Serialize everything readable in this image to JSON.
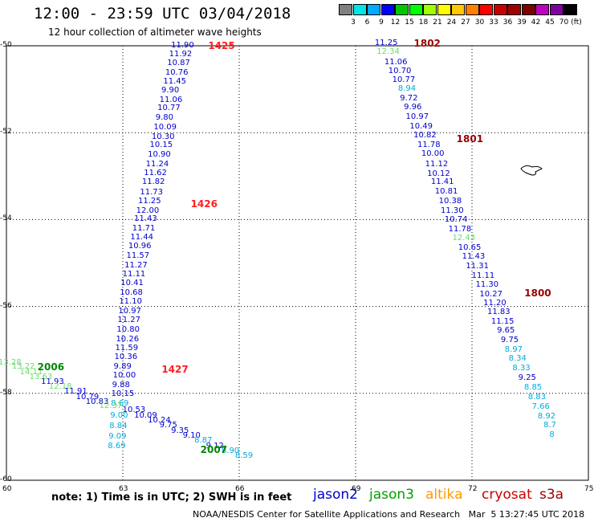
{
  "title": "12:00 - 23:59 UTC 03/04/2018",
  "subtitle": "12 hour collection of altimeter wave heights",
  "colorbar": {
    "unit": "(ft)",
    "colors": [
      "#808080",
      "#00e5e5",
      "#00aaff",
      "#0000ff",
      "#00c800",
      "#00ff00",
      "#a0ff00",
      "#ffff00",
      "#ffc800",
      "#ff8000",
      "#ff0000",
      "#c80000",
      "#a00000",
      "#800000",
      "#c000c0",
      "#8000a0",
      "#000000"
    ],
    "labels": [
      "3",
      "6",
      "9",
      "12",
      "15",
      "18",
      "21",
      "24",
      "27",
      "30",
      "33",
      "36",
      "39",
      "42",
      "45",
      "70"
    ]
  },
  "axes": {
    "x_ticks": [
      "60",
      "63",
      "66",
      "69",
      "72",
      "75"
    ],
    "y_ticks": [
      "-50",
      "-52",
      "-54",
      "-56",
      "-58",
      "-60"
    ]
  },
  "colors": {
    "jason2": "#0000cc",
    "jason3": "#00a000",
    "altika": "#ff9900",
    "cryosat": "#cc0000",
    "s3a": "#990000",
    "light_green": "#70e070",
    "cyan": "#00aadd",
    "lightgreen_j3": "#66dd66"
  },
  "pass_labels": [
    {
      "text": "1425",
      "lon": 65.2,
      "lat": -50.0,
      "color": "#ff2020"
    },
    {
      "text": "1426",
      "lon": 64.75,
      "lat": -53.65,
      "color": "#ff2020"
    },
    {
      "text": "1427",
      "lon": 64.0,
      "lat": -57.45,
      "color": "#ff2020"
    },
    {
      "text": "1802",
      "lon": 70.5,
      "lat": -49.95,
      "color": "#990000"
    },
    {
      "text": "1801",
      "lon": 71.6,
      "lat": -52.15,
      "color": "#990000"
    },
    {
      "text": "1800",
      "lon": 73.35,
      "lat": -55.7,
      "color": "#990000"
    },
    {
      "text": "2006",
      "lon": 60.8,
      "lat": -57.4,
      "color": "#008800"
    },
    {
      "text": "2007",
      "lon": 65.0,
      "lat": -59.3,
      "color": "#008800"
    }
  ],
  "track_1425": {
    "color": "#0000cc",
    "points": [
      {
        "v": "11.90",
        "lon": 64.45,
        "lat": -50.0
      },
      {
        "v": "11.92",
        "lon": 64.4,
        "lat": -50.2
      },
      {
        "v": "10.87",
        "lon": 64.35,
        "lat": -50.4
      },
      {
        "v": "10.76",
        "lon": 64.3,
        "lat": -50.62
      },
      {
        "v": "11.45",
        "lon": 64.25,
        "lat": -50.83
      },
      {
        "v": "9.90",
        "lon": 64.2,
        "lat": -51.04
      },
      {
        "v": "11.06",
        "lon": 64.15,
        "lat": -51.25
      },
      {
        "v": "10.77",
        "lon": 64.1,
        "lat": -51.45
      },
      {
        "v": "9.80",
        "lon": 64.05,
        "lat": -51.67
      },
      {
        "v": "10.09",
        "lon": 64.0,
        "lat": -51.88
      },
      {
        "v": "10.30",
        "lon": 63.95,
        "lat": -52.1
      },
      {
        "v": "10.15",
        "lon": 63.9,
        "lat": -52.3
      },
      {
        "v": "10.90",
        "lon": 63.85,
        "lat": -52.51
      },
      {
        "v": "11.24",
        "lon": 63.8,
        "lat": -52.73
      },
      {
        "v": "11.62",
        "lon": 63.75,
        "lat": -52.94
      },
      {
        "v": "11.82",
        "lon": 63.7,
        "lat": -53.15
      },
      {
        "v": "11.73",
        "lon": 63.65,
        "lat": -53.38
      },
      {
        "v": "11.25",
        "lon": 63.6,
        "lat": -53.58
      },
      {
        "v": "12.00",
        "lon": 63.55,
        "lat": -53.8
      },
      {
        "v": "11.43",
        "lon": 63.5,
        "lat": -54.0
      },
      {
        "v": "11.71",
        "lon": 63.45,
        "lat": -54.21
      },
      {
        "v": "11.44",
        "lon": 63.4,
        "lat": -54.42
      },
      {
        "v": "10.96",
        "lon": 63.35,
        "lat": -54.63
      },
      {
        "v": "11.57",
        "lon": 63.3,
        "lat": -54.85
      },
      {
        "v": "11.27",
        "lon": 63.25,
        "lat": -55.06
      },
      {
        "v": "11.11",
        "lon": 63.2,
        "lat": -55.27
      },
      {
        "v": "10.41",
        "lon": 63.15,
        "lat": -55.48
      },
      {
        "v": "10.68",
        "lon": 63.13,
        "lat": -55.7
      },
      {
        "v": "11.10",
        "lon": 63.11,
        "lat": -55.9
      },
      {
        "v": "10.97",
        "lon": 63.09,
        "lat": -56.12
      },
      {
        "v": "11.27",
        "lon": 63.07,
        "lat": -56.33
      },
      {
        "v": "10.80",
        "lon": 63.05,
        "lat": -56.54
      },
      {
        "v": "10.26",
        "lon": 63.03,
        "lat": -56.76
      },
      {
        "v": "11.59",
        "lon": 63.01,
        "lat": -56.97
      },
      {
        "v": "10.36",
        "lon": 62.99,
        "lat": -57.18
      },
      {
        "v": "9.89",
        "lon": 62.97,
        "lat": -57.4
      },
      {
        "v": "10.00",
        "lon": 62.95,
        "lat": -57.6
      },
      {
        "v": "9.88",
        "lon": 62.93,
        "lat": -57.82
      },
      {
        "v": "10.15",
        "lon": 62.91,
        "lat": -58.03
      }
    ]
  },
  "track_1425_cyan": {
    "color": "#00aadd",
    "points": [
      {
        "v": "8.69",
        "lon": 62.9,
        "lat": -58.25
      },
      {
        "v": "9.00",
        "lon": 62.88,
        "lat": -58.52
      },
      {
        "v": "8.84",
        "lon": 62.86,
        "lat": -58.76
      },
      {
        "v": "9.09",
        "lon": 62.84,
        "lat": -59.0
      },
      {
        "v": "8.69",
        "lon": 62.82,
        "lat": -59.22
      }
    ]
  },
  "track_1802": {
    "color": "#0000cc",
    "points": [
      {
        "v": "11.25",
        "lon": 69.7,
        "lat": -49.95
      },
      {
        "v": "12.34",
        "lon": 69.75,
        "lat": -50.15,
        "c": "#66dd66"
      },
      {
        "v": "11.06",
        "lon": 69.95,
        "lat": -50.38
      },
      {
        "v": "10.70",
        "lon": 70.05,
        "lat": -50.6
      },
      {
        "v": "10.77",
        "lon": 70.15,
        "lat": -50.8
      },
      {
        "v": "8.94",
        "lon": 70.3,
        "lat": -51.0,
        "c": "#00aadd"
      },
      {
        "v": "9.72",
        "lon": 70.35,
        "lat": -51.22
      },
      {
        "v": "9.96",
        "lon": 70.45,
        "lat": -51.43
      },
      {
        "v": "10.97",
        "lon": 70.5,
        "lat": -51.65
      },
      {
        "v": "10.49",
        "lon": 70.6,
        "lat": -51.86
      },
      {
        "v": "10.82",
        "lon": 70.7,
        "lat": -52.07
      },
      {
        "v": "11.78",
        "lon": 70.8,
        "lat": -52.3
      },
      {
        "v": "10.00",
        "lon": 70.9,
        "lat": -52.5
      },
      {
        "v": "11.12",
        "lon": 71.0,
        "lat": -52.73
      },
      {
        "v": "10.12",
        "lon": 71.05,
        "lat": -52.95
      },
      {
        "v": "11.41",
        "lon": 71.15,
        "lat": -53.15
      },
      {
        "v": "10.81",
        "lon": 71.25,
        "lat": -53.37
      },
      {
        "v": "10.38",
        "lon": 71.35,
        "lat": -53.58
      },
      {
        "v": "11.30",
        "lon": 71.4,
        "lat": -53.8
      },
      {
        "v": "10.74",
        "lon": 71.5,
        "lat": -54.02
      },
      {
        "v": "11.78",
        "lon": 71.6,
        "lat": -54.23
      },
      {
        "v": "12.43",
        "lon": 71.7,
        "lat": -54.44,
        "c": "#66dd66"
      },
      {
        "v": "10.65",
        "lon": 71.85,
        "lat": -54.65
      },
      {
        "v": "11.43",
        "lon": 71.95,
        "lat": -54.87
      },
      {
        "v": "11.31",
        "lon": 72.05,
        "lat": -55.08
      },
      {
        "v": "11.11",
        "lon": 72.2,
        "lat": -55.3
      },
      {
        "v": "11.30",
        "lon": 72.3,
        "lat": -55.5
      },
      {
        "v": "10.27",
        "lon": 72.4,
        "lat": -55.73
      },
      {
        "v": "11.20",
        "lon": 72.5,
        "lat": -55.93
      },
      {
        "v": "11.83",
        "lon": 72.6,
        "lat": -56.14
      },
      {
        "v": "11.15",
        "lon": 72.7,
        "lat": -56.35
      },
      {
        "v": "9.65",
        "lon": 72.85,
        "lat": -56.57
      },
      {
        "v": "9.75",
        "lon": 72.95,
        "lat": -56.78
      },
      {
        "v": "8.97",
        "lon": 73.05,
        "lat": -57.0,
        "c": "#00aadd"
      },
      {
        "v": "8.34",
        "lon": 73.15,
        "lat": -57.2,
        "c": "#00aadd"
      },
      {
        "v": "8.33",
        "lon": 73.25,
        "lat": -57.43,
        "c": "#00aadd"
      },
      {
        "v": "9.25",
        "lon": 73.4,
        "lat": -57.65
      },
      {
        "v": "8.85",
        "lon": 73.55,
        "lat": -57.88,
        "c": "#00aadd"
      },
      {
        "v": "8.83",
        "lon": 73.65,
        "lat": -58.1,
        "c": "#00aadd"
      },
      {
        "v": "7.66",
        "lon": 73.75,
        "lat": -58.32,
        "c": "#00aadd"
      },
      {
        "v": "8.92",
        "lon": 73.9,
        "lat": -58.54,
        "c": "#00aadd"
      },
      {
        "v": "8.7",
        "lon": 74.05,
        "lat": -58.75,
        "c": "#00aadd"
      },
      {
        "v": "8",
        "lon": 74.2,
        "lat": -58.97,
        "c": "#00aadd"
      }
    ]
  },
  "track_2006": {
    "points": [
      {
        "v": "13.28",
        "lon": 60.0,
        "lat": -57.3,
        "c": "#66dd66"
      },
      {
        "v": "13.22",
        "lon": 60.35,
        "lat": -57.4,
        "c": "#66dd66"
      },
      {
        "v": "14.11",
        "lon": 60.55,
        "lat": -57.52,
        "c": "#66dd66"
      },
      {
        "v": "13.63",
        "lon": 60.8,
        "lat": -57.63,
        "c": "#66dd66"
      },
      {
        "v": "11.93",
        "lon": 61.1,
        "lat": -57.74,
        "c": "#0000cc"
      },
      {
        "v": "12.18",
        "lon": 61.3,
        "lat": -57.86,
        "c": "#66dd66"
      },
      {
        "v": "11.91",
        "lon": 61.7,
        "lat": -57.97,
        "c": "#0000cc"
      },
      {
        "v": "10.79",
        "lon": 62.0,
        "lat": -58.09,
        "c": "#0000cc"
      },
      {
        "v": "10.83",
        "lon": 62.25,
        "lat": -58.2,
        "c": "#0000cc"
      },
      {
        "v": "12.37",
        "lon": 62.6,
        "lat": -58.3,
        "c": "#66dd66"
      },
      {
        "v": "10.53",
        "lon": 63.2,
        "lat": -58.4,
        "c": "#0000cc"
      },
      {
        "v": "10.09",
        "lon": 63.5,
        "lat": -58.52,
        "c": "#0000cc"
      },
      {
        "v": "10.24",
        "lon": 63.85,
        "lat": -58.64,
        "c": "#0000cc"
      },
      {
        "v": "9.75",
        "lon": 64.15,
        "lat": -58.75,
        "c": "#0000cc"
      },
      {
        "v": "9.35",
        "lon": 64.45,
        "lat": -58.87,
        "c": "#0000cc"
      },
      {
        "v": "9.10",
        "lon": 64.75,
        "lat": -58.98,
        "c": "#0000cc"
      },
      {
        "v": "8.87",
        "lon": 65.05,
        "lat": -59.1,
        "c": "#00aadd"
      },
      {
        "v": "9.12",
        "lon": 65.35,
        "lat": -59.22,
        "c": "#0000cc"
      },
      {
        "v": "8.90",
        "lon": 65.75,
        "lat": -59.33,
        "c": "#00aadd"
      },
      {
        "v": "8.59",
        "lon": 66.1,
        "lat": -59.45,
        "c": "#00aadd"
      }
    ]
  },
  "note": "note: 1) Time is in UTC; 2) SWH is in feet",
  "legend": [
    {
      "name": "jason2",
      "color": "#0000cc",
      "offset": 0
    },
    {
      "name": "jason3",
      "color": "#00a000",
      "offset": 70
    },
    {
      "name": "altika",
      "color": "#ff9900",
      "offset": 140
    },
    {
      "name": "cryosat",
      "color": "#cc0000",
      "offset": 210
    },
    {
      "name": "s3a",
      "color": "#990000",
      "offset": 282
    }
  ],
  "footer": "NOAA/NESDIS Center for Satellite Applications and Research   Mar  5 13:27:45 UTC 2018"
}
